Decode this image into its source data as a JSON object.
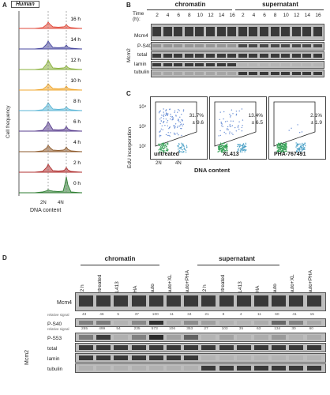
{
  "panel_a": {
    "letter": "A",
    "species": "Human",
    "ylabel": "Cell frequency",
    "xlabel": "DNA content",
    "ticks": [
      "2N",
      "4N"
    ],
    "times": [
      "16 h",
      "14 h",
      "12 h",
      "10 h",
      "8 h",
      "6 h",
      "4 h",
      "2 h",
      "0 h"
    ],
    "colors": [
      "#e24a3b",
      "#4a4aa0",
      "#8ab13c",
      "#f0a830",
      "#5bb6d6",
      "#5a3f8f",
      "#8e5a2b",
      "#b03030",
      "#2e7d32"
    ]
  },
  "panel_b": {
    "letter": "B",
    "time_label": "Time (h):",
    "groups": [
      "chromatin",
      "supernatant"
    ],
    "times": [
      "2",
      "4",
      "6",
      "8",
      "10",
      "12",
      "14",
      "16",
      "2",
      "4",
      "6",
      "8",
      "10",
      "12",
      "14",
      "16"
    ],
    "protein": "Mcm2",
    "rows": [
      "Mcm4",
      "P-S40",
      "total",
      "lamin",
      "tubulin"
    ]
  },
  "panel_c": {
    "letter": "C",
    "ylabel": "EdU incorporation",
    "xlabel": "DNA content",
    "yticks": [
      "10⁴",
      "10³",
      "10²"
    ],
    "xticks": [
      "2N",
      "4N"
    ],
    "plots": [
      {
        "name": "untreated",
        "pct": "31.7%",
        "sd": "± 9.6"
      },
      {
        "name": "XL413",
        "pct": "13.4%",
        "sd": "± 6.5"
      },
      {
        "name": "PHA-767491",
        "pct": "2.1%",
        "sd": "± 1.9"
      }
    ]
  },
  "panel_d": {
    "letter": "D",
    "groups": [
      "chromatin",
      "supernatant"
    ],
    "lanes": [
      "t−2 h",
      "untreated",
      "XL413",
      "PHA",
      "Tauto",
      "Tauto+XL",
      "Tauto+PHA",
      "t−2 h",
      "untreated",
      "XL413",
      "PHA",
      "Tauto",
      "Tauto+XL",
      "Tauto+PHA"
    ],
    "rows": [
      "Mcm4",
      "P-S40",
      "P-S53",
      "total",
      "lamin",
      "tubulin"
    ],
    "protein": "Mcm2",
    "rel_signal_label": "relative signal",
    "s40_values": [
      "43",
      "46",
      "5",
      "37",
      "100",
      "11",
      "34",
      "21",
      "8",
      "4",
      "11",
      "60",
      "41",
      "15"
    ],
    "s53_values": [
      "255",
      "499",
      "54",
      "235",
      "573",
      "106",
      "353",
      "27",
      "103",
      "35",
      "63",
      "134",
      "30",
      "60"
    ]
  }
}
